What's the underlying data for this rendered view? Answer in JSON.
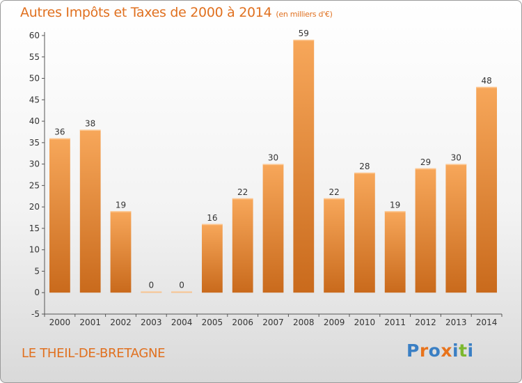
{
  "header": {
    "title": "Autres Impôts et Taxes de 2000 à 2014",
    "subtitle": "(en milliers d'€)"
  },
  "footer": {
    "place": "LE THEIL-DE-BRETAGNE",
    "brand": "Proxiti",
    "brand_colors": [
      "#3a7fc4",
      "#e8731c",
      "#3a7fc4",
      "#e8731c",
      "#3a7fc4",
      "#7cb82f",
      "#3a7fc4"
    ]
  },
  "chart_data": {
    "type": "bar",
    "title": "Autres Impôts et Taxes de 2000 à 2014",
    "subtitle": "(en milliers d'€)",
    "xlabel": "",
    "ylabel": "",
    "categories": [
      "2000",
      "2001",
      "2002",
      "2003",
      "2004",
      "2005",
      "2006",
      "2007",
      "2008",
      "2009",
      "2010",
      "2011",
      "2012",
      "2013",
      "2014"
    ],
    "values": [
      36,
      38,
      19,
      0,
      0,
      16,
      22,
      30,
      59,
      22,
      28,
      19,
      29,
      30,
      48
    ],
    "data_labels": [
      "36",
      "38",
      "19",
      "0",
      "0",
      "16",
      "22",
      "30",
      "59",
      "22",
      "28",
      "19",
      "29",
      "30",
      "48"
    ],
    "ylim": [
      -5,
      60
    ],
    "yticks": [
      -5,
      0,
      5,
      10,
      15,
      20,
      25,
      30,
      35,
      40,
      45,
      50,
      55,
      60
    ],
    "grid": false,
    "legend": "none",
    "bar_color_light": "#f7a75a",
    "bar_color_dark": "#c96a1c",
    "bar_top_color": "#fdc68f"
  }
}
